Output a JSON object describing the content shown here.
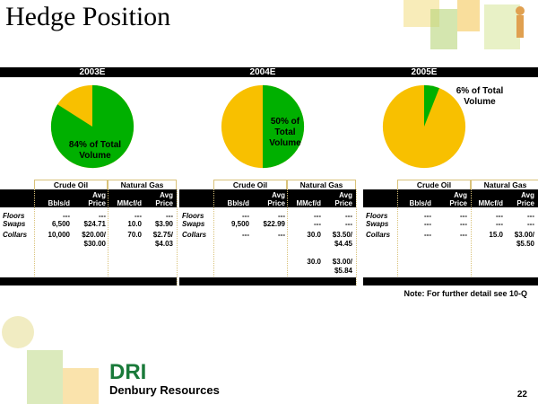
{
  "title": "Hedge Position",
  "colors": {
    "green": "#00b000",
    "yellow": "#f8c000",
    "bar": "#000000"
  },
  "years": [
    {
      "label": "2003E",
      "green_pct": 84,
      "pie_label": "84% of Total Volume",
      "crude": {
        "floors": [
          "---",
          "---"
        ],
        "swaps": [
          "6,500",
          "$24.71"
        ],
        "collars": [
          [
            "10,000",
            "$20.00/",
            "$30.00"
          ]
        ]
      },
      "gas": {
        "floors": [
          "---",
          "---"
        ],
        "swaps": [
          "10.0",
          "$3.90"
        ],
        "collars": [
          [
            "70.0",
            "$2.75/",
            "$4.03"
          ]
        ]
      }
    },
    {
      "label": "2004E",
      "green_pct": 50,
      "pie_label": "50% of Total Volume",
      "crude": {
        "floors": [
          "---",
          "---"
        ],
        "swaps": [
          "9,500",
          "$22.99"
        ],
        "collars": [
          [
            "---",
            "---",
            ""
          ]
        ]
      },
      "gas": {
        "floors": [
          "---",
          "---"
        ],
        "swaps": [
          "---",
          "---"
        ],
        "collars": [
          [
            "30.0",
            "$3.50/",
            "$4.45"
          ],
          [
            "30.0",
            "$3.00/",
            "$5.84"
          ]
        ]
      }
    },
    {
      "label": "2005E",
      "green_pct": 6,
      "pie_label": "6% of Total Volume",
      "crude": {
        "floors": [
          "---",
          "---"
        ],
        "swaps": [
          "---",
          "---"
        ],
        "collars": [
          [
            "---",
            "---",
            ""
          ]
        ]
      },
      "gas": {
        "floors": [
          "---",
          "---"
        ],
        "swaps": [
          "---",
          "---"
        ],
        "collars": [
          [
            "15.0",
            "$3.00/",
            "$5.50"
          ]
        ]
      }
    }
  ],
  "table": {
    "crude_header": "Crude Oil",
    "gas_header": "Natural Gas",
    "bbls": "Bbls/d",
    "mmcf": "MMcf/d",
    "avg": "Avg",
    "price": "Price",
    "rows": [
      "Floors",
      "Swaps",
      "Collars"
    ]
  },
  "note": "Note: For further detail see 10-Q",
  "logo_text": "DRI",
  "company": "Denbury Resources",
  "page_number": "22"
}
